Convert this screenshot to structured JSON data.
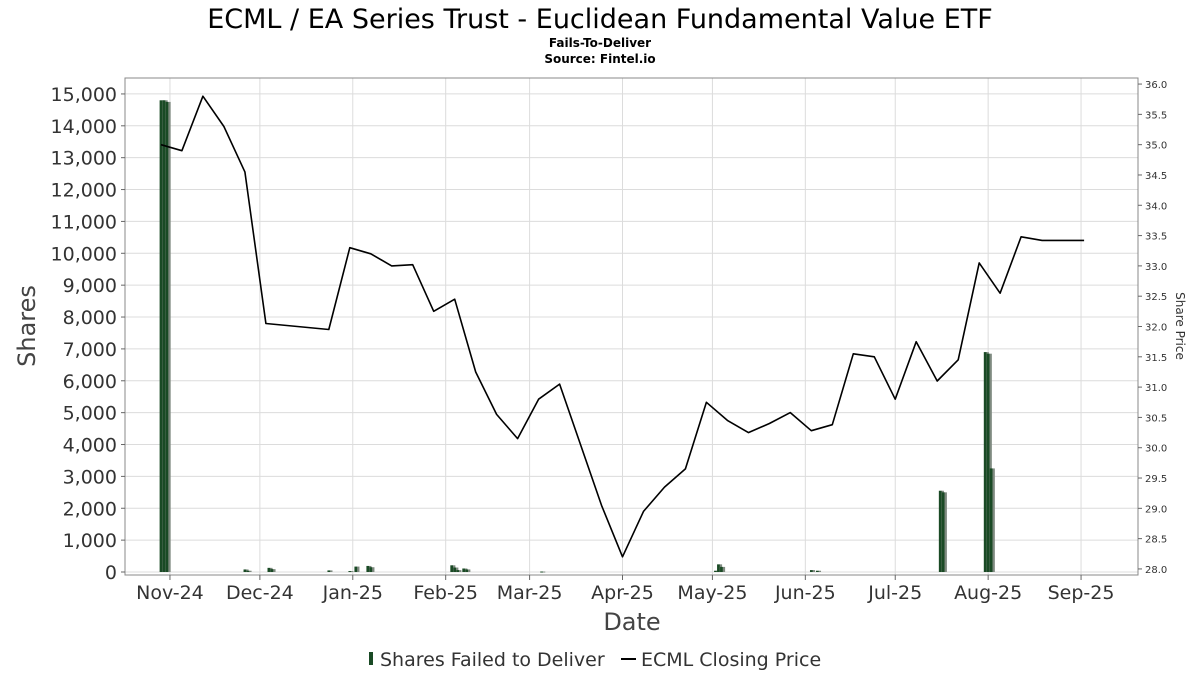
{
  "chart_data": {
    "type": "bar",
    "title": "ECML / EA Series Trust - Euclidean Fundamental Value ETF",
    "subtitle": "Fails-To-Deliver",
    "source": "Source: Fintel.io",
    "xlabel": "Date",
    "ylabel": "Shares",
    "y2label": "Share Price",
    "ylim": [
      0,
      15500
    ],
    "y2lim": [
      27.9,
      36.1
    ],
    "xlim": [
      "2024-10-17",
      "2025-09-20"
    ],
    "yticks": [
      0,
      1000,
      2000,
      3000,
      4000,
      5000,
      6000,
      7000,
      8000,
      9000,
      10000,
      11000,
      12000,
      13000,
      14000,
      15000
    ],
    "yticklabels": [
      "0",
      "1,000",
      "2,000",
      "3,000",
      "4,000",
      "5,000",
      "6,000",
      "7,000",
      "8,000",
      "9,000",
      "10,000",
      "11,000",
      "12,000",
      "13,000",
      "14,000",
      "15,000"
    ],
    "y2ticks": [
      28.0,
      28.5,
      29.0,
      29.5,
      30.0,
      30.5,
      31.0,
      31.5,
      32.0,
      32.5,
      33.0,
      33.5,
      34.0,
      34.5,
      35.0,
      35.5,
      36.0
    ],
    "y2ticklabels": [
      "28.0",
      "28.5",
      "29.0",
      "29.5",
      "30.0",
      "30.5",
      "31.0",
      "31.5",
      "32.0",
      "32.5",
      "33.0",
      "33.5",
      "34.0",
      "34.5",
      "35.0",
      "35.5",
      "36.0"
    ],
    "xticks": [
      "2024-11-01",
      "2024-12-01",
      "2025-01-01",
      "2025-02-01",
      "2025-03-01",
      "2025-04-01",
      "2025-05-01",
      "2025-06-01",
      "2025-07-01",
      "2025-08-01",
      "2025-09-01"
    ],
    "xticklabels": [
      "Nov-24",
      "Dec-24",
      "Jan-25",
      "Feb-25",
      "Mar-25",
      "Apr-25",
      "May-25",
      "Jun-25",
      "Jul-25",
      "Aug-25",
      "Sep-25"
    ],
    "grid": true,
    "legend_position": "bottom",
    "series": [
      {
        "name": "Shares Failed to Deliver",
        "kind": "bar",
        "axis": "left",
        "color": "#1a4a25",
        "x": [
          "2024-10-29",
          "2024-10-30",
          "2024-10-31",
          "2024-11-26",
          "2024-11-27",
          "2024-12-04",
          "2024-12-05",
          "2024-12-24",
          "2024-12-31",
          "2025-01-02",
          "2025-01-06",
          "2025-01-07",
          "2025-02-03",
          "2025-02-04",
          "2025-02-05",
          "2025-02-07",
          "2025-02-08",
          "2025-03-05",
          "2025-05-02",
          "2025-05-03",
          "2025-05-04",
          "2025-06-03",
          "2025-06-05",
          "2025-07-16",
          "2025-07-17",
          "2025-07-31",
          "2025-08-01",
          "2025-08-02"
        ],
        "values": [
          14800,
          14800,
          14750,
          80,
          40,
          130,
          90,
          50,
          30,
          170,
          190,
          150,
          210,
          140,
          60,
          110,
          80,
          15,
          40,
          240,
          160,
          60,
          40,
          2550,
          2500,
          6900,
          6850,
          3250
        ]
      },
      {
        "name": "ECML Closing Price",
        "kind": "line",
        "axis": "right",
        "color": "#000000",
        "x": [
          "2024-10-29",
          "2024-11-05",
          "2024-11-12",
          "2024-11-19",
          "2024-11-26",
          "2024-12-03",
          "2024-12-24",
          "2024-12-31",
          "2025-01-07",
          "2025-01-14",
          "2025-01-21",
          "2025-01-28",
          "2025-02-04",
          "2025-02-11",
          "2025-02-18",
          "2025-02-25",
          "2025-03-04",
          "2025-03-11",
          "2025-03-25",
          "2025-04-01",
          "2025-04-08",
          "2025-04-15",
          "2025-04-22",
          "2025-04-29",
          "2025-05-06",
          "2025-05-13",
          "2025-05-20",
          "2025-05-27",
          "2025-06-03",
          "2025-06-10",
          "2025-06-17",
          "2025-06-24",
          "2025-07-01",
          "2025-07-08",
          "2025-07-15",
          "2025-07-22",
          "2025-07-29",
          "2025-08-05",
          "2025-08-12",
          "2025-08-19",
          "2025-08-26",
          "2025-09-02"
        ],
        "values": [
          35.0,
          34.9,
          35.8,
          35.3,
          34.55,
          32.05,
          31.95,
          33.3,
          33.2,
          33.0,
          33.02,
          32.25,
          32.45,
          31.25,
          30.55,
          30.15,
          30.8,
          31.05,
          29.05,
          28.2,
          28.95,
          29.35,
          29.65,
          30.75,
          30.45,
          30.25,
          30.4,
          30.58,
          30.28,
          30.38,
          31.55,
          31.5,
          30.8,
          31.75,
          31.1,
          31.45,
          33.05,
          32.55,
          33.48,
          33.42,
          33.42,
          33.42
        ]
      }
    ]
  }
}
